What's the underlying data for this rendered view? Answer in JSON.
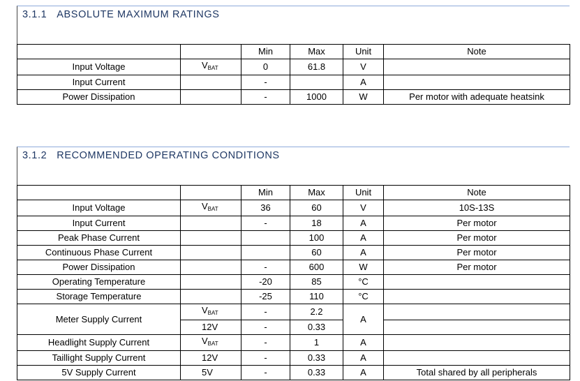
{
  "sections": [
    {
      "number": "3.1.1",
      "title": "ABSOLUTE MAXIMUM RATINGS",
      "columns": [
        "Min",
        "Max",
        "Unit",
        "Note"
      ],
      "rows": [
        [
          "Input Voltage",
          {
            "v": "V",
            "sub": "BAT"
          },
          "0",
          "61.8",
          "V",
          null
        ],
        [
          "Input Current",
          null,
          "-",
          null,
          "A",
          null
        ],
        [
          "Power Dissipation",
          null,
          "-",
          "1000",
          "W",
          "Per motor with adequate heatsink"
        ]
      ]
    },
    {
      "number": "3.1.2",
      "title": "RECOMMENDED OPERATING CONDITIONS",
      "columns": [
        "Min",
        "Max",
        "Unit",
        "Note"
      ],
      "rows": [
        [
          "Input Voltage",
          {
            "v": "V",
            "sub": "BAT"
          },
          "36",
          "60",
          "V",
          "10S-13S"
        ],
        [
          "Input Current",
          null,
          "-",
          "18",
          "A",
          "Per motor"
        ],
        [
          "Peak Phase Current",
          null,
          null,
          "100",
          "A",
          "Per motor"
        ],
        [
          "Continuous Phase Current",
          null,
          null,
          "60",
          "A",
          "Per motor"
        ],
        [
          "Power Dissipation",
          null,
          "-",
          "600",
          "W",
          "Per motor"
        ],
        [
          "Operating Temperature",
          null,
          "-20",
          "85",
          "°C",
          null
        ],
        [
          "Storage Temperature",
          null,
          "-25",
          "110",
          "°C",
          null
        ],
        [
          "Meter Supply Current",
          {
            "v": "V",
            "sub": "BAT"
          },
          "-",
          "2.2",
          "A",
          null
        ],
        [
          "12V",
          "-",
          "0.33",
          null
        ],
        [
          "Headlight Supply Current",
          {
            "v": "V",
            "sub": "BAT"
          },
          "-",
          "1",
          "A",
          null
        ],
        [
          "Taillight Supply Current",
          "12V",
          "-",
          "0.33",
          "A",
          null
        ],
        [
          "5V Supply Current",
          "5V",
          "-",
          "0.33",
          "A",
          "Total shared by all peripherals"
        ]
      ]
    }
  ]
}
